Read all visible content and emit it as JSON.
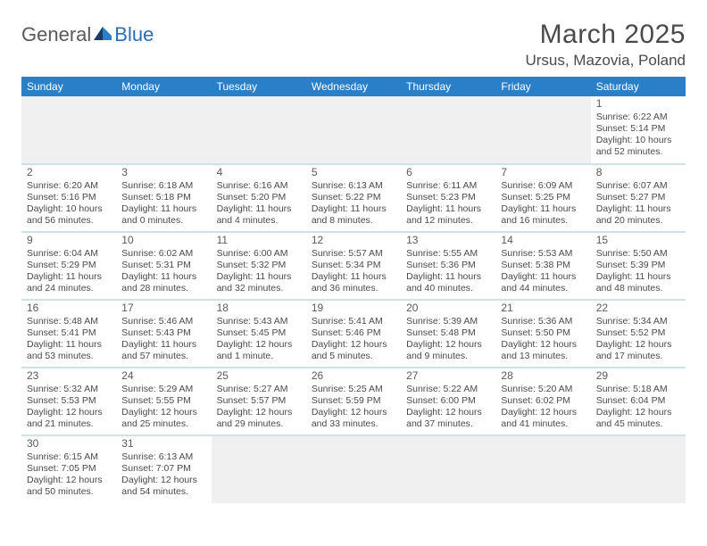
{
  "logo": {
    "part1": "General",
    "part2": "Blue"
  },
  "title": "March 2025",
  "location": "Ursus, Mazovia, Poland",
  "colors": {
    "header_bg": "#2a7fc9",
    "header_fg": "#ffffff",
    "row_border": "#cfe0ee",
    "text": "#4a4a4a",
    "empty_bg": "#f0f0f0"
  },
  "weekdays": [
    "Sunday",
    "Monday",
    "Tuesday",
    "Wednesday",
    "Thursday",
    "Friday",
    "Saturday"
  ],
  "weeks": [
    [
      null,
      null,
      null,
      null,
      null,
      null,
      {
        "n": "1",
        "sr": "Sunrise: 6:22 AM",
        "ss": "Sunset: 5:14 PM",
        "dl": "Daylight: 10 hours and 52 minutes."
      }
    ],
    [
      {
        "n": "2",
        "sr": "Sunrise: 6:20 AM",
        "ss": "Sunset: 5:16 PM",
        "dl": "Daylight: 10 hours and 56 minutes."
      },
      {
        "n": "3",
        "sr": "Sunrise: 6:18 AM",
        "ss": "Sunset: 5:18 PM",
        "dl": "Daylight: 11 hours and 0 minutes."
      },
      {
        "n": "4",
        "sr": "Sunrise: 6:16 AM",
        "ss": "Sunset: 5:20 PM",
        "dl": "Daylight: 11 hours and 4 minutes."
      },
      {
        "n": "5",
        "sr": "Sunrise: 6:13 AM",
        "ss": "Sunset: 5:22 PM",
        "dl": "Daylight: 11 hours and 8 minutes."
      },
      {
        "n": "6",
        "sr": "Sunrise: 6:11 AM",
        "ss": "Sunset: 5:23 PM",
        "dl": "Daylight: 11 hours and 12 minutes."
      },
      {
        "n": "7",
        "sr": "Sunrise: 6:09 AM",
        "ss": "Sunset: 5:25 PM",
        "dl": "Daylight: 11 hours and 16 minutes."
      },
      {
        "n": "8",
        "sr": "Sunrise: 6:07 AM",
        "ss": "Sunset: 5:27 PM",
        "dl": "Daylight: 11 hours and 20 minutes."
      }
    ],
    [
      {
        "n": "9",
        "sr": "Sunrise: 6:04 AM",
        "ss": "Sunset: 5:29 PM",
        "dl": "Daylight: 11 hours and 24 minutes."
      },
      {
        "n": "10",
        "sr": "Sunrise: 6:02 AM",
        "ss": "Sunset: 5:31 PM",
        "dl": "Daylight: 11 hours and 28 minutes."
      },
      {
        "n": "11",
        "sr": "Sunrise: 6:00 AM",
        "ss": "Sunset: 5:32 PM",
        "dl": "Daylight: 11 hours and 32 minutes."
      },
      {
        "n": "12",
        "sr": "Sunrise: 5:57 AM",
        "ss": "Sunset: 5:34 PM",
        "dl": "Daylight: 11 hours and 36 minutes."
      },
      {
        "n": "13",
        "sr": "Sunrise: 5:55 AM",
        "ss": "Sunset: 5:36 PM",
        "dl": "Daylight: 11 hours and 40 minutes."
      },
      {
        "n": "14",
        "sr": "Sunrise: 5:53 AM",
        "ss": "Sunset: 5:38 PM",
        "dl": "Daylight: 11 hours and 44 minutes."
      },
      {
        "n": "15",
        "sr": "Sunrise: 5:50 AM",
        "ss": "Sunset: 5:39 PM",
        "dl": "Daylight: 11 hours and 48 minutes."
      }
    ],
    [
      {
        "n": "16",
        "sr": "Sunrise: 5:48 AM",
        "ss": "Sunset: 5:41 PM",
        "dl": "Daylight: 11 hours and 53 minutes."
      },
      {
        "n": "17",
        "sr": "Sunrise: 5:46 AM",
        "ss": "Sunset: 5:43 PM",
        "dl": "Daylight: 11 hours and 57 minutes."
      },
      {
        "n": "18",
        "sr": "Sunrise: 5:43 AM",
        "ss": "Sunset: 5:45 PM",
        "dl": "Daylight: 12 hours and 1 minute."
      },
      {
        "n": "19",
        "sr": "Sunrise: 5:41 AM",
        "ss": "Sunset: 5:46 PM",
        "dl": "Daylight: 12 hours and 5 minutes."
      },
      {
        "n": "20",
        "sr": "Sunrise: 5:39 AM",
        "ss": "Sunset: 5:48 PM",
        "dl": "Daylight: 12 hours and 9 minutes."
      },
      {
        "n": "21",
        "sr": "Sunrise: 5:36 AM",
        "ss": "Sunset: 5:50 PM",
        "dl": "Daylight: 12 hours and 13 minutes."
      },
      {
        "n": "22",
        "sr": "Sunrise: 5:34 AM",
        "ss": "Sunset: 5:52 PM",
        "dl": "Daylight: 12 hours and 17 minutes."
      }
    ],
    [
      {
        "n": "23",
        "sr": "Sunrise: 5:32 AM",
        "ss": "Sunset: 5:53 PM",
        "dl": "Daylight: 12 hours and 21 minutes."
      },
      {
        "n": "24",
        "sr": "Sunrise: 5:29 AM",
        "ss": "Sunset: 5:55 PM",
        "dl": "Daylight: 12 hours and 25 minutes."
      },
      {
        "n": "25",
        "sr": "Sunrise: 5:27 AM",
        "ss": "Sunset: 5:57 PM",
        "dl": "Daylight: 12 hours and 29 minutes."
      },
      {
        "n": "26",
        "sr": "Sunrise: 5:25 AM",
        "ss": "Sunset: 5:59 PM",
        "dl": "Daylight: 12 hours and 33 minutes."
      },
      {
        "n": "27",
        "sr": "Sunrise: 5:22 AM",
        "ss": "Sunset: 6:00 PM",
        "dl": "Daylight: 12 hours and 37 minutes."
      },
      {
        "n": "28",
        "sr": "Sunrise: 5:20 AM",
        "ss": "Sunset: 6:02 PM",
        "dl": "Daylight: 12 hours and 41 minutes."
      },
      {
        "n": "29",
        "sr": "Sunrise: 5:18 AM",
        "ss": "Sunset: 6:04 PM",
        "dl": "Daylight: 12 hours and 45 minutes."
      }
    ],
    [
      {
        "n": "30",
        "sr": "Sunrise: 6:15 AM",
        "ss": "Sunset: 7:05 PM",
        "dl": "Daylight: 12 hours and 50 minutes."
      },
      {
        "n": "31",
        "sr": "Sunrise: 6:13 AM",
        "ss": "Sunset: 7:07 PM",
        "dl": "Daylight: 12 hours and 54 minutes."
      },
      null,
      null,
      null,
      null,
      null
    ]
  ]
}
